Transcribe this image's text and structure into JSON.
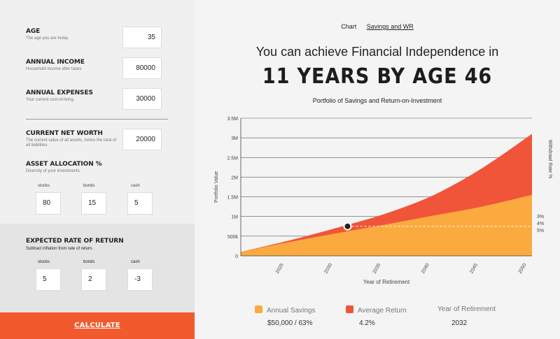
{
  "form": {
    "age": {
      "label": "AGE",
      "desc": "The age you are today.",
      "value": "35"
    },
    "income": {
      "label": "ANNUAL INCOME",
      "desc": "Household income after taxes.",
      "value": "80000"
    },
    "expenses": {
      "label": "ANNUAL EXPENSES",
      "desc": "Your current cost-of-living.",
      "value": "30000"
    },
    "networth": {
      "label": "CURRENT NET WORTH",
      "desc": "The current value of all assets, minus the total of all liabilities.",
      "value": "20000"
    },
    "allocation": {
      "label": "ASSET ALLOCATION %",
      "desc": "Diversity of your investments.",
      "stocks_label": "stocks",
      "bonds_label": "bonds",
      "cash_label": "cash",
      "stocks": "80",
      "bonds": "15",
      "cash": "5"
    },
    "return": {
      "label": "EXPECTED RATE OF RETURN",
      "desc": "Subtract inflation from rate of return.",
      "stocks_label": "stocks",
      "bonds_label": "bonds",
      "cash_label": "cash",
      "stocks": "5",
      "bonds": "2",
      "cash": "-3"
    },
    "calculate_label": "CALCULATE"
  },
  "tabs": [
    "Chart",
    "Savings and WR"
  ],
  "active_tab": 1,
  "headline": "You can achieve Financial Independence in",
  "big_result": "11 YEARS BY AGE 46",
  "chart_title": "Portfolio of Savings and Return-on-Investment",
  "colors": {
    "accent": "#f15a2c",
    "savings": "#fbaa3f",
    "return": "#f0553a"
  },
  "chart_data": {
    "type": "area",
    "ylabel": "Portfolio Value",
    "xlabel": "Year of Retirement",
    "y2label": "Withdrawl Rate %",
    "ylim": [
      0,
      3500000
    ],
    "yticks": [
      0,
      500000,
      1000000,
      1500000,
      2000000,
      2500000,
      3000000,
      3500000
    ],
    "ytick_labels": [
      "0",
      "500k",
      "1M",
      "1.5M",
      "2M",
      "2.5M",
      "3M",
      "3.5M"
    ],
    "xlim": [
      2021,
      2051
    ],
    "xticks": [
      2025,
      2030,
      2035,
      2040,
      2045,
      2050
    ],
    "right_labels": [
      "3%",
      "4%",
      "5%"
    ],
    "series": [
      {
        "name": "Annual Savings",
        "x": [
          2021,
          2026,
          2031,
          2036,
          2041,
          2046,
          2051
        ],
        "values": [
          100000,
          350000,
          580000,
          800000,
          1030000,
          1260000,
          1550000
        ]
      },
      {
        "name": "Average Return",
        "x": [
          2021,
          2026,
          2031,
          2036,
          2041,
          2046,
          2051
        ],
        "values": [
          100000,
          390000,
          720000,
          1080000,
          1560000,
          2250000,
          3100000
        ]
      }
    ],
    "marker": {
      "x": 2032,
      "y": 750000
    }
  },
  "legend": [
    {
      "label": "Annual Savings",
      "value": "$50,000 / 63%"
    },
    {
      "label": "Average Return",
      "value": "4.2%"
    },
    {
      "label": "Year of Retirement",
      "value": "2032"
    }
  ]
}
